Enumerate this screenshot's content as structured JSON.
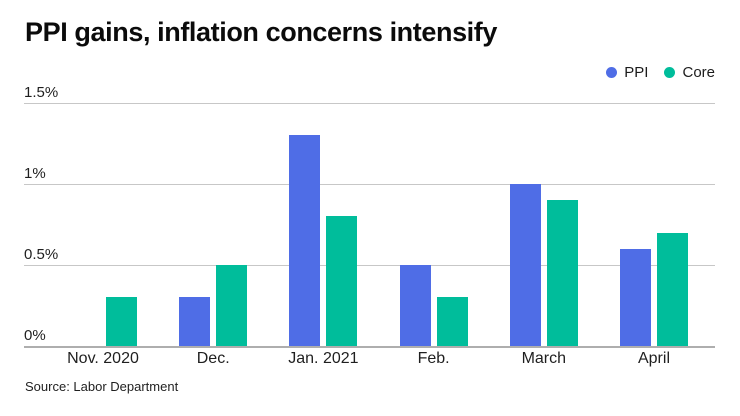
{
  "title": "PPI gains, inflation concerns intensify",
  "source": "Source: Labor Department",
  "legend": {
    "items": [
      {
        "label": "PPI",
        "color": "#4f6de6"
      },
      {
        "label": "Core",
        "color": "#00bd9b"
      }
    ]
  },
  "colors": {
    "ppi_blue": "#4f6de6",
    "core_teal": "#00bd9b",
    "gridline": "#c7c7c7",
    "baseline": "#aeaeae",
    "title_text": "#0b0b0b",
    "axis_text": "#1f1f1f",
    "background": "#ffffff"
  },
  "chart_data": {
    "type": "bar",
    "title": "PPI gains, inflation concerns intensify",
    "categories": [
      "Nov. 2020",
      "Dec.",
      "Jan. 2021",
      "Feb.",
      "March",
      "April"
    ],
    "series": [
      {
        "name": "PPI",
        "color": "#4f6de6",
        "values": [
          0,
          0.3,
          1.3,
          0.5,
          1.0,
          0.6
        ]
      },
      {
        "name": "Core",
        "color": "#00bd9b",
        "values": [
          0.3,
          0.5,
          0.8,
          0.3,
          0.9,
          0.7
        ]
      }
    ],
    "yticks": [
      {
        "value": 0,
        "label": "0%"
      },
      {
        "value": 0.5,
        "label": "0.5%"
      },
      {
        "value": 1,
        "label": "1%"
      },
      {
        "value": 1.5,
        "label": "1.5%"
      }
    ],
    "ylim": [
      0,
      1.5
    ],
    "unit": "percent",
    "grid": true,
    "legend_position": "top-right",
    "xlabel": "",
    "ylabel": ""
  }
}
